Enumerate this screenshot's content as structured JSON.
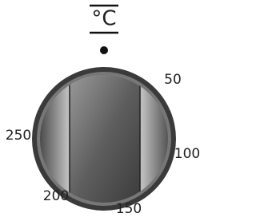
{
  "unit": "°C",
  "scale_labels": [
    "50",
    "100",
    "150",
    "200",
    "250"
  ]
}
